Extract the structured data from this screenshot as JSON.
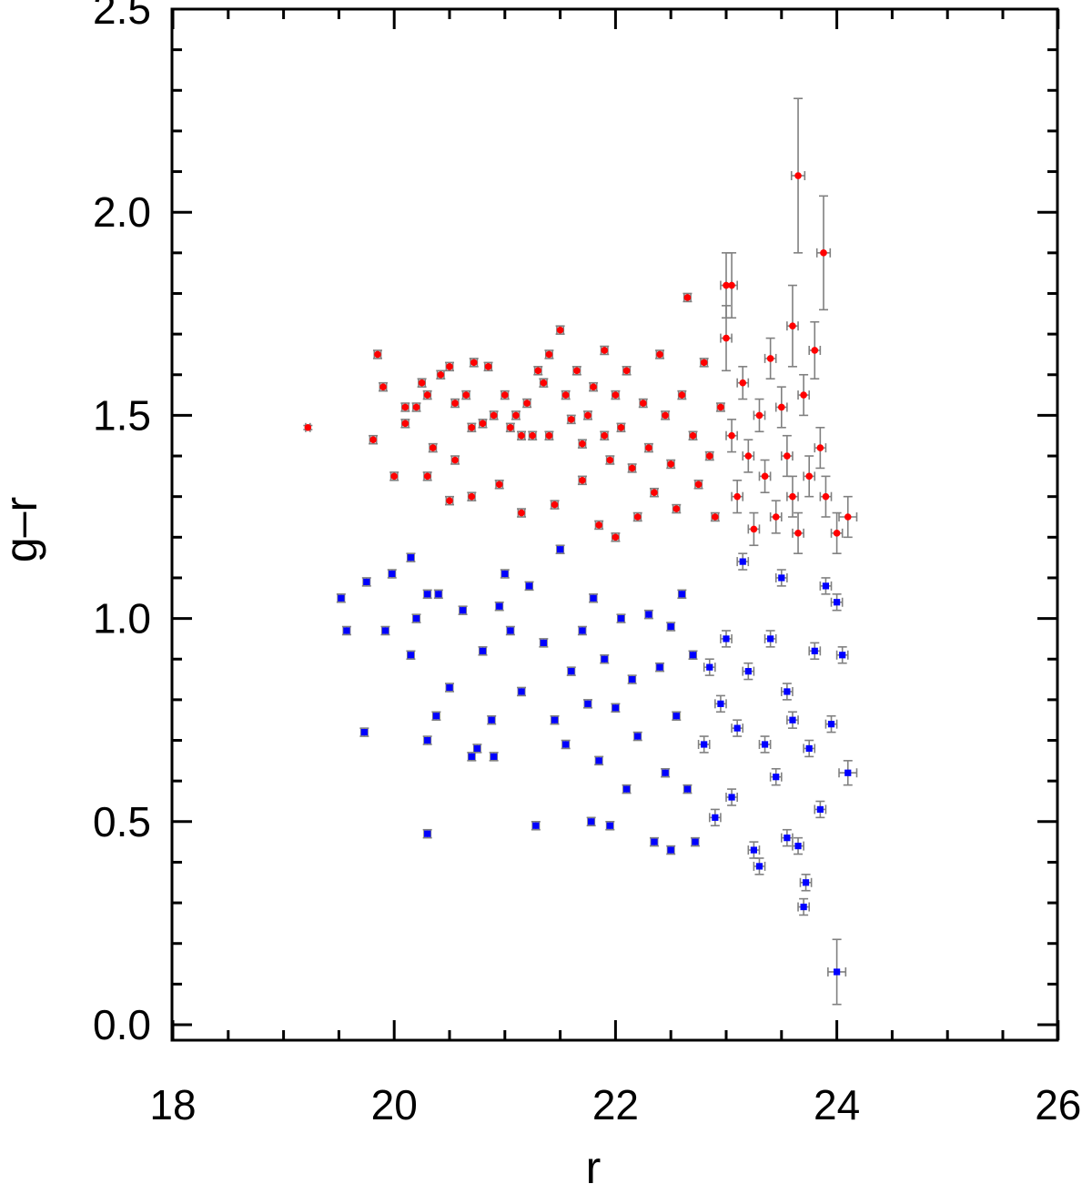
{
  "chart_data": {
    "type": "scatter",
    "title": "",
    "xlabel": "r",
    "ylabel": "g–r",
    "xlim": [
      18,
      26
    ],
    "ylim": [
      -0.05,
      2.5
    ],
    "xticks": [
      "18",
      "20",
      "22",
      "24",
      "26"
    ],
    "yticks": [
      "0.0",
      "0.5",
      "1.0",
      "1.5",
      "2.0",
      "2.5"
    ],
    "xtick_values": [
      18,
      20,
      22,
      24,
      26
    ],
    "ytick_values": [
      0.0,
      0.5,
      1.0,
      1.5,
      2.0,
      2.5
    ],
    "grid": false,
    "error_bar_color": "#808080",
    "series": [
      {
        "color": "#ff0000",
        "marker": "circle",
        "points": [
          [
            19.22,
            1.47,
            0.02,
            0.005
          ],
          [
            19.81,
            1.44,
            0.03,
            0.01
          ],
          [
            19.85,
            1.65,
            0.03,
            0.01
          ],
          [
            19.9,
            1.57,
            0.03,
            0.01
          ],
          [
            20.0,
            1.35,
            0.03,
            0.01
          ],
          [
            20.1,
            1.48,
            0.03,
            0.01
          ],
          [
            20.1,
            1.52,
            0.03,
            0.01
          ],
          [
            20.2,
            1.52,
            0.03,
            0.01
          ],
          [
            20.25,
            1.58,
            0.03,
            0.01
          ],
          [
            20.3,
            1.55,
            0.03,
            0.01
          ],
          [
            20.3,
            1.35,
            0.03,
            0.01
          ],
          [
            20.35,
            1.42,
            0.03,
            0.01
          ],
          [
            20.42,
            1.6,
            0.03,
            0.01
          ],
          [
            20.5,
            1.62,
            0.03,
            0.01
          ],
          [
            20.55,
            1.53,
            0.03,
            0.01
          ],
          [
            20.5,
            1.29,
            0.03,
            0.01
          ],
          [
            20.55,
            1.39,
            0.03,
            0.01
          ],
          [
            20.65,
            1.55,
            0.03,
            0.01
          ],
          [
            20.72,
            1.63,
            0.03,
            0.01
          ],
          [
            20.7,
            1.47,
            0.03,
            0.01
          ],
          [
            20.7,
            1.3,
            0.03,
            0.01
          ],
          [
            20.8,
            1.48,
            0.03,
            0.01
          ],
          [
            20.85,
            1.62,
            0.03,
            0.01
          ],
          [
            20.9,
            1.5,
            0.03,
            0.01
          ],
          [
            20.95,
            1.33,
            0.03,
            0.01
          ],
          [
            21.0,
            1.55,
            0.03,
            0.01
          ],
          [
            21.05,
            1.47,
            0.03,
            0.01
          ],
          [
            21.1,
            1.5,
            0.03,
            0.01
          ],
          [
            21.15,
            1.45,
            0.03,
            0.01
          ],
          [
            21.15,
            1.26,
            0.03,
            0.01
          ],
          [
            21.2,
            1.53,
            0.03,
            0.01
          ],
          [
            21.25,
            1.45,
            0.03,
            0.01
          ],
          [
            21.3,
            1.61,
            0.03,
            0.01
          ],
          [
            21.35,
            1.58,
            0.03,
            0.01
          ],
          [
            21.4,
            1.65,
            0.03,
            0.01
          ],
          [
            21.4,
            1.45,
            0.03,
            0.01
          ],
          [
            21.45,
            1.28,
            0.03,
            0.01
          ],
          [
            21.5,
            1.71,
            0.03,
            0.01
          ],
          [
            21.55,
            1.55,
            0.03,
            0.01
          ],
          [
            21.6,
            1.49,
            0.03,
            0.01
          ],
          [
            21.65,
            1.61,
            0.03,
            0.01
          ],
          [
            21.7,
            1.43,
            0.03,
            0.01
          ],
          [
            21.7,
            1.34,
            0.03,
            0.01
          ],
          [
            21.75,
            1.5,
            0.03,
            0.01
          ],
          [
            21.8,
            1.57,
            0.03,
            0.01
          ],
          [
            21.85,
            1.23,
            0.03,
            0.01
          ],
          [
            21.9,
            1.66,
            0.03,
            0.01
          ],
          [
            21.9,
            1.45,
            0.03,
            0.01
          ],
          [
            21.95,
            1.39,
            0.03,
            0.01
          ],
          [
            22.0,
            1.55,
            0.03,
            0.01
          ],
          [
            22.0,
            1.2,
            0.03,
            0.01
          ],
          [
            22.05,
            1.47,
            0.03,
            0.01
          ],
          [
            22.1,
            1.61,
            0.03,
            0.01
          ],
          [
            22.15,
            1.37,
            0.03,
            0.01
          ],
          [
            22.2,
            1.25,
            0.03,
            0.01
          ],
          [
            22.25,
            1.53,
            0.03,
            0.01
          ],
          [
            22.3,
            1.42,
            0.03,
            0.01
          ],
          [
            22.35,
            1.31,
            0.03,
            0.01
          ],
          [
            22.4,
            1.65,
            0.03,
            0.01
          ],
          [
            22.45,
            1.5,
            0.03,
            0.01
          ],
          [
            22.5,
            1.38,
            0.03,
            0.01
          ],
          [
            22.55,
            1.27,
            0.03,
            0.01
          ],
          [
            22.6,
            1.55,
            0.03,
            0.01
          ],
          [
            22.65,
            1.79,
            0.03,
            0.01
          ],
          [
            22.7,
            1.45,
            0.03,
            0.01
          ],
          [
            22.75,
            1.33,
            0.03,
            0.01
          ],
          [
            22.8,
            1.63,
            0.03,
            0.01
          ],
          [
            22.85,
            1.4,
            0.03,
            0.01
          ],
          [
            22.9,
            1.25,
            0.03,
            0.01
          ],
          [
            22.95,
            1.52,
            0.03,
            0.01
          ],
          [
            23.0,
            1.82,
            0.05,
            0.08
          ],
          [
            23.0,
            1.69,
            0.05,
            0.08
          ],
          [
            23.05,
            1.82,
            0.05,
            0.08
          ],
          [
            23.05,
            1.45,
            0.05,
            0.04
          ],
          [
            23.1,
            1.3,
            0.05,
            0.04
          ],
          [
            23.15,
            1.58,
            0.05,
            0.04
          ],
          [
            23.2,
            1.4,
            0.05,
            0.04
          ],
          [
            23.25,
            1.22,
            0.05,
            0.04
          ],
          [
            23.3,
            1.5,
            0.05,
            0.04
          ],
          [
            23.35,
            1.35,
            0.05,
            0.04
          ],
          [
            23.4,
            1.64,
            0.05,
            0.05
          ],
          [
            23.45,
            1.25,
            0.05,
            0.04
          ],
          [
            23.5,
            1.52,
            0.05,
            0.05
          ],
          [
            23.55,
            1.4,
            0.05,
            0.05
          ],
          [
            23.6,
            1.72,
            0.05,
            0.1
          ],
          [
            23.6,
            1.3,
            0.05,
            0.05
          ],
          [
            23.65,
            2.09,
            0.06,
            0.19
          ],
          [
            23.65,
            1.21,
            0.05,
            0.05
          ],
          [
            23.7,
            1.55,
            0.05,
            0.05
          ],
          [
            23.75,
            1.35,
            0.05,
            0.05
          ],
          [
            23.8,
            1.66,
            0.05,
            0.07
          ],
          [
            23.85,
            1.42,
            0.05,
            0.05
          ],
          [
            23.88,
            1.9,
            0.06,
            0.14
          ],
          [
            23.9,
            1.3,
            0.05,
            0.05
          ],
          [
            24.0,
            1.21,
            0.05,
            0.05
          ],
          [
            24.1,
            1.25,
            0.08,
            0.05
          ]
        ]
      },
      {
        "color": "#0000ff",
        "marker": "square",
        "points": [
          [
            19.52,
            1.05,
            0.03,
            0.01
          ],
          [
            19.57,
            0.97,
            0.03,
            0.01
          ],
          [
            19.75,
            1.09,
            0.03,
            0.01
          ],
          [
            19.73,
            0.72,
            0.03,
            0.01
          ],
          [
            19.92,
            0.97,
            0.03,
            0.01
          ],
          [
            19.98,
            1.11,
            0.03,
            0.01
          ],
          [
            20.15,
            1.15,
            0.03,
            0.01
          ],
          [
            20.15,
            0.91,
            0.03,
            0.01
          ],
          [
            20.2,
            1.0,
            0.03,
            0.01
          ],
          [
            20.3,
            1.06,
            0.03,
            0.01
          ],
          [
            20.3,
            0.7,
            0.03,
            0.01
          ],
          [
            20.3,
            0.47,
            0.03,
            0.01
          ],
          [
            20.38,
            0.76,
            0.03,
            0.01
          ],
          [
            20.4,
            1.06,
            0.03,
            0.01
          ],
          [
            20.5,
            0.83,
            0.03,
            0.01
          ],
          [
            20.62,
            1.02,
            0.03,
            0.01
          ],
          [
            20.7,
            0.66,
            0.03,
            0.01
          ],
          [
            20.75,
            0.68,
            0.03,
            0.01
          ],
          [
            20.8,
            0.92,
            0.03,
            0.01
          ],
          [
            20.88,
            0.75,
            0.03,
            0.01
          ],
          [
            20.9,
            0.66,
            0.03,
            0.01
          ],
          [
            20.95,
            1.03,
            0.03,
            0.01
          ],
          [
            21.0,
            1.11,
            0.03,
            0.01
          ],
          [
            21.05,
            0.97,
            0.03,
            0.01
          ],
          [
            21.15,
            0.82,
            0.03,
            0.01
          ],
          [
            21.22,
            1.08,
            0.03,
            0.01
          ],
          [
            21.28,
            0.49,
            0.03,
            0.01
          ],
          [
            21.35,
            0.94,
            0.03,
            0.01
          ],
          [
            21.45,
            0.75,
            0.03,
            0.01
          ],
          [
            21.5,
            1.17,
            0.03,
            0.01
          ],
          [
            21.55,
            0.69,
            0.03,
            0.01
          ],
          [
            21.6,
            0.87,
            0.03,
            0.01
          ],
          [
            21.7,
            0.97,
            0.03,
            0.01
          ],
          [
            21.75,
            0.79,
            0.03,
            0.01
          ],
          [
            21.78,
            0.5,
            0.03,
            0.01
          ],
          [
            21.8,
            1.05,
            0.03,
            0.01
          ],
          [
            21.85,
            0.65,
            0.03,
            0.01
          ],
          [
            21.9,
            0.9,
            0.03,
            0.01
          ],
          [
            21.95,
            0.49,
            0.03,
            0.01
          ],
          [
            22.0,
            0.78,
            0.03,
            0.01
          ],
          [
            22.05,
            1.0,
            0.03,
            0.01
          ],
          [
            22.1,
            0.58,
            0.03,
            0.01
          ],
          [
            22.15,
            0.85,
            0.03,
            0.01
          ],
          [
            22.2,
            0.71,
            0.03,
            0.01
          ],
          [
            22.3,
            1.01,
            0.03,
            0.01
          ],
          [
            22.35,
            0.45,
            0.03,
            0.01
          ],
          [
            22.4,
            0.88,
            0.03,
            0.01
          ],
          [
            22.45,
            0.62,
            0.03,
            0.01
          ],
          [
            22.5,
            0.98,
            0.03,
            0.01
          ],
          [
            22.5,
            0.43,
            0.03,
            0.01
          ],
          [
            22.55,
            0.76,
            0.03,
            0.01
          ],
          [
            22.6,
            1.06,
            0.03,
            0.01
          ],
          [
            22.65,
            0.58,
            0.03,
            0.01
          ],
          [
            22.7,
            0.91,
            0.03,
            0.01
          ],
          [
            22.72,
            0.45,
            0.03,
            0.01
          ],
          [
            22.8,
            0.69,
            0.05,
            0.02
          ],
          [
            22.85,
            0.88,
            0.05,
            0.02
          ],
          [
            22.9,
            0.51,
            0.05,
            0.02
          ],
          [
            22.95,
            0.79,
            0.05,
            0.02
          ],
          [
            23.0,
            0.95,
            0.05,
            0.02
          ],
          [
            23.05,
            0.56,
            0.05,
            0.02
          ],
          [
            23.1,
            0.73,
            0.05,
            0.02
          ],
          [
            23.15,
            1.14,
            0.05,
            0.02
          ],
          [
            23.2,
            0.87,
            0.05,
            0.02
          ],
          [
            23.25,
            0.43,
            0.05,
            0.02
          ],
          [
            23.3,
            0.39,
            0.05,
            0.02
          ],
          [
            23.35,
            0.69,
            0.05,
            0.02
          ],
          [
            23.4,
            0.95,
            0.05,
            0.02
          ],
          [
            23.45,
            0.61,
            0.05,
            0.02
          ],
          [
            23.5,
            1.1,
            0.05,
            0.02
          ],
          [
            23.55,
            0.82,
            0.05,
            0.02
          ],
          [
            23.55,
            0.46,
            0.05,
            0.02
          ],
          [
            23.6,
            0.75,
            0.05,
            0.02
          ],
          [
            23.65,
            0.44,
            0.05,
            0.02
          ],
          [
            23.7,
            0.29,
            0.05,
            0.02
          ],
          [
            23.72,
            0.35,
            0.05,
            0.02
          ],
          [
            23.75,
            0.68,
            0.05,
            0.02
          ],
          [
            23.8,
            0.92,
            0.05,
            0.02
          ],
          [
            23.85,
            0.53,
            0.05,
            0.02
          ],
          [
            23.9,
            1.08,
            0.05,
            0.02
          ],
          [
            23.95,
            0.74,
            0.05,
            0.02
          ],
          [
            24.0,
            1.04,
            0.05,
            0.02
          ],
          [
            24.05,
            0.91,
            0.05,
            0.02
          ],
          [
            24.1,
            0.62,
            0.08,
            0.03
          ],
          [
            24.0,
            0.13,
            0.08,
            0.08
          ]
        ]
      }
    ]
  }
}
